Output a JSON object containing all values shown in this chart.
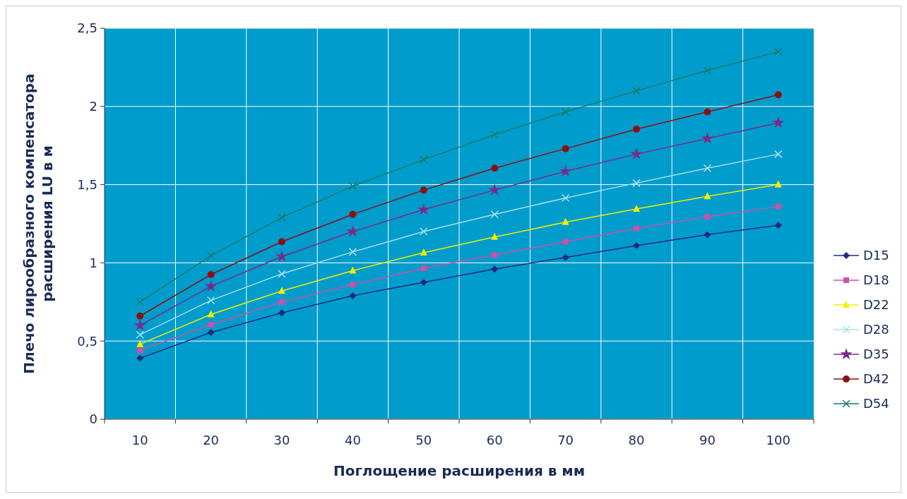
{
  "chart_data": {
    "type": "line",
    "xlabel": "Поглощение расширения в мм",
    "ylabel": "Плечо лирообразного компенсатора\nрасширения LU в м",
    "categories": [
      "10",
      "20",
      "30",
      "40",
      "50",
      "60",
      "70",
      "80",
      "90",
      "100"
    ],
    "ylim": [
      0,
      2.5
    ],
    "yticks": [
      0,
      {
        "value": 0.5,
        "label": "0,5"
      },
      1,
      {
        "value": 1.5,
        "label": "1,5"
      },
      2,
      {
        "value": 2.5,
        "label": "2,5"
      }
    ],
    "grid": true,
    "legend": "right",
    "line_style": "solid",
    "series": [
      {
        "name": "D15",
        "color": "#1f2a7a",
        "marker": "diamond",
        "values": [
          0.39,
          0.555,
          0.68,
          0.79,
          0.875,
          0.96,
          1.035,
          1.11,
          1.18,
          1.24
        ]
      },
      {
        "name": "D18",
        "color": "#d050a8",
        "marker": "square",
        "values": [
          0.44,
          0.605,
          0.75,
          0.86,
          0.965,
          1.05,
          1.135,
          1.22,
          1.295,
          1.36
        ]
      },
      {
        "name": "D22",
        "color": "#f0f000",
        "marker": "triangle",
        "values": [
          0.48,
          0.67,
          0.82,
          0.95,
          1.065,
          1.165,
          1.26,
          1.345,
          1.425,
          1.5
        ]
      },
      {
        "name": "D28",
        "color": "#a8e0e8",
        "marker": "cross",
        "values": [
          0.54,
          0.76,
          0.93,
          1.07,
          1.2,
          1.31,
          1.415,
          1.51,
          1.605,
          1.695
        ]
      },
      {
        "name": "D35",
        "color": "#7a2a8a",
        "marker": "star",
        "values": [
          0.6,
          0.85,
          1.04,
          1.2,
          1.34,
          1.465,
          1.585,
          1.695,
          1.795,
          1.895
        ]
      },
      {
        "name": "D42",
        "color": "#8a1010",
        "marker": "circle",
        "values": [
          0.66,
          0.925,
          1.135,
          1.31,
          1.465,
          1.605,
          1.73,
          1.855,
          1.965,
          2.075
        ]
      },
      {
        "name": "D54",
        "color": "#1a7a6a",
        "marker": "cross",
        "values": [
          0.75,
          1.045,
          1.29,
          1.49,
          1.66,
          1.82,
          1.965,
          2.1,
          2.23,
          2.35
        ]
      }
    ]
  }
}
